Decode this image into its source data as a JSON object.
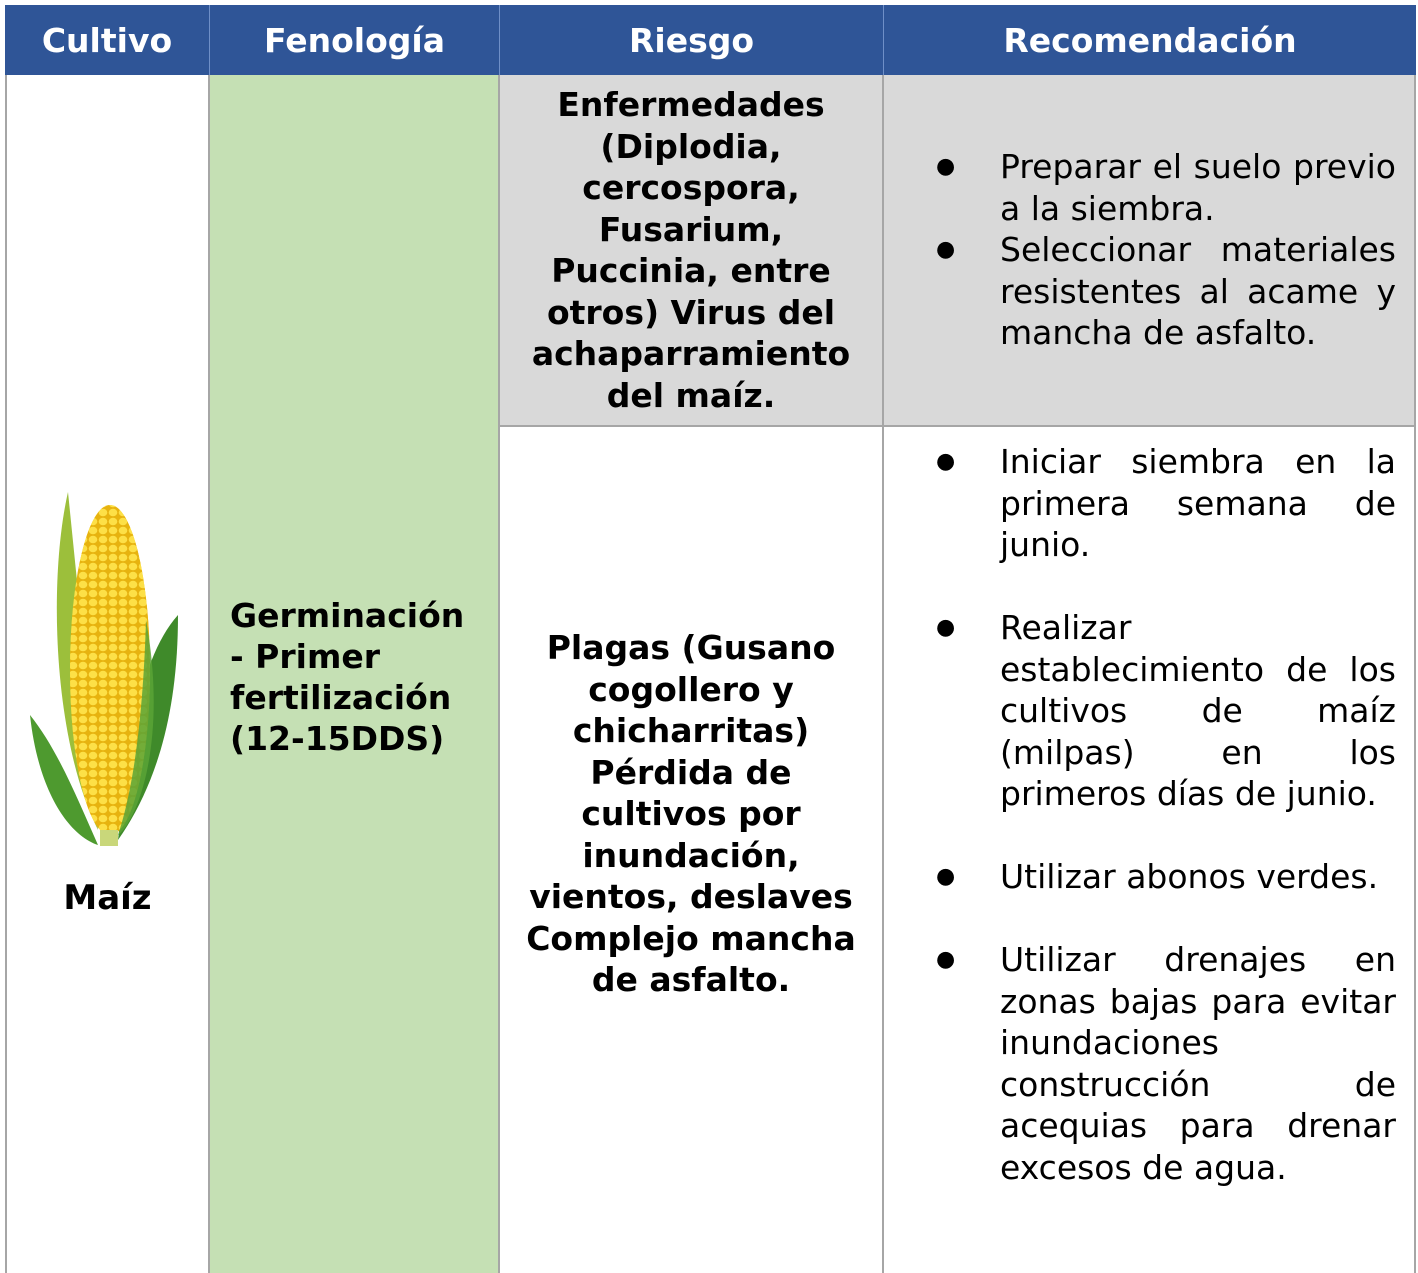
{
  "header": {
    "columns": [
      "Cultivo",
      "Fenología",
      "Riesgo",
      "Recomendación"
    ]
  },
  "table": {
    "crop": "Maíz",
    "phenology": "Germinación - Primer fertilización (12-15DDS)",
    "rows": [
      {
        "risk": "Enfermedades (Diplodia, cercospora, Fusarium, Puccinia, entre otros) Virus del achaparramiento del maíz.",
        "recommendations": [
          "Preparar el suelo previo a la siembra.",
          "Seleccionar materiales resistentes al acame y mancha de asfalto."
        ]
      },
      {
        "risk": "Plagas (Gusano cogollero y chicharritas) Pérdida de cultivos por inundación, vientos, deslaves Complejo mancha de asfalto.",
        "recommendations": [
          "Iniciar siembra en la primera semana de junio.",
          "Realizar establecimiento de los cultivos de maíz (milpas) en los primeros días de junio.",
          "Utilizar abonos verdes.",
          "Utilizar drenajes en zonas bajas para evitar inundaciones construcción de acequias para drenar excesos de agua."
        ]
      }
    ]
  }
}
